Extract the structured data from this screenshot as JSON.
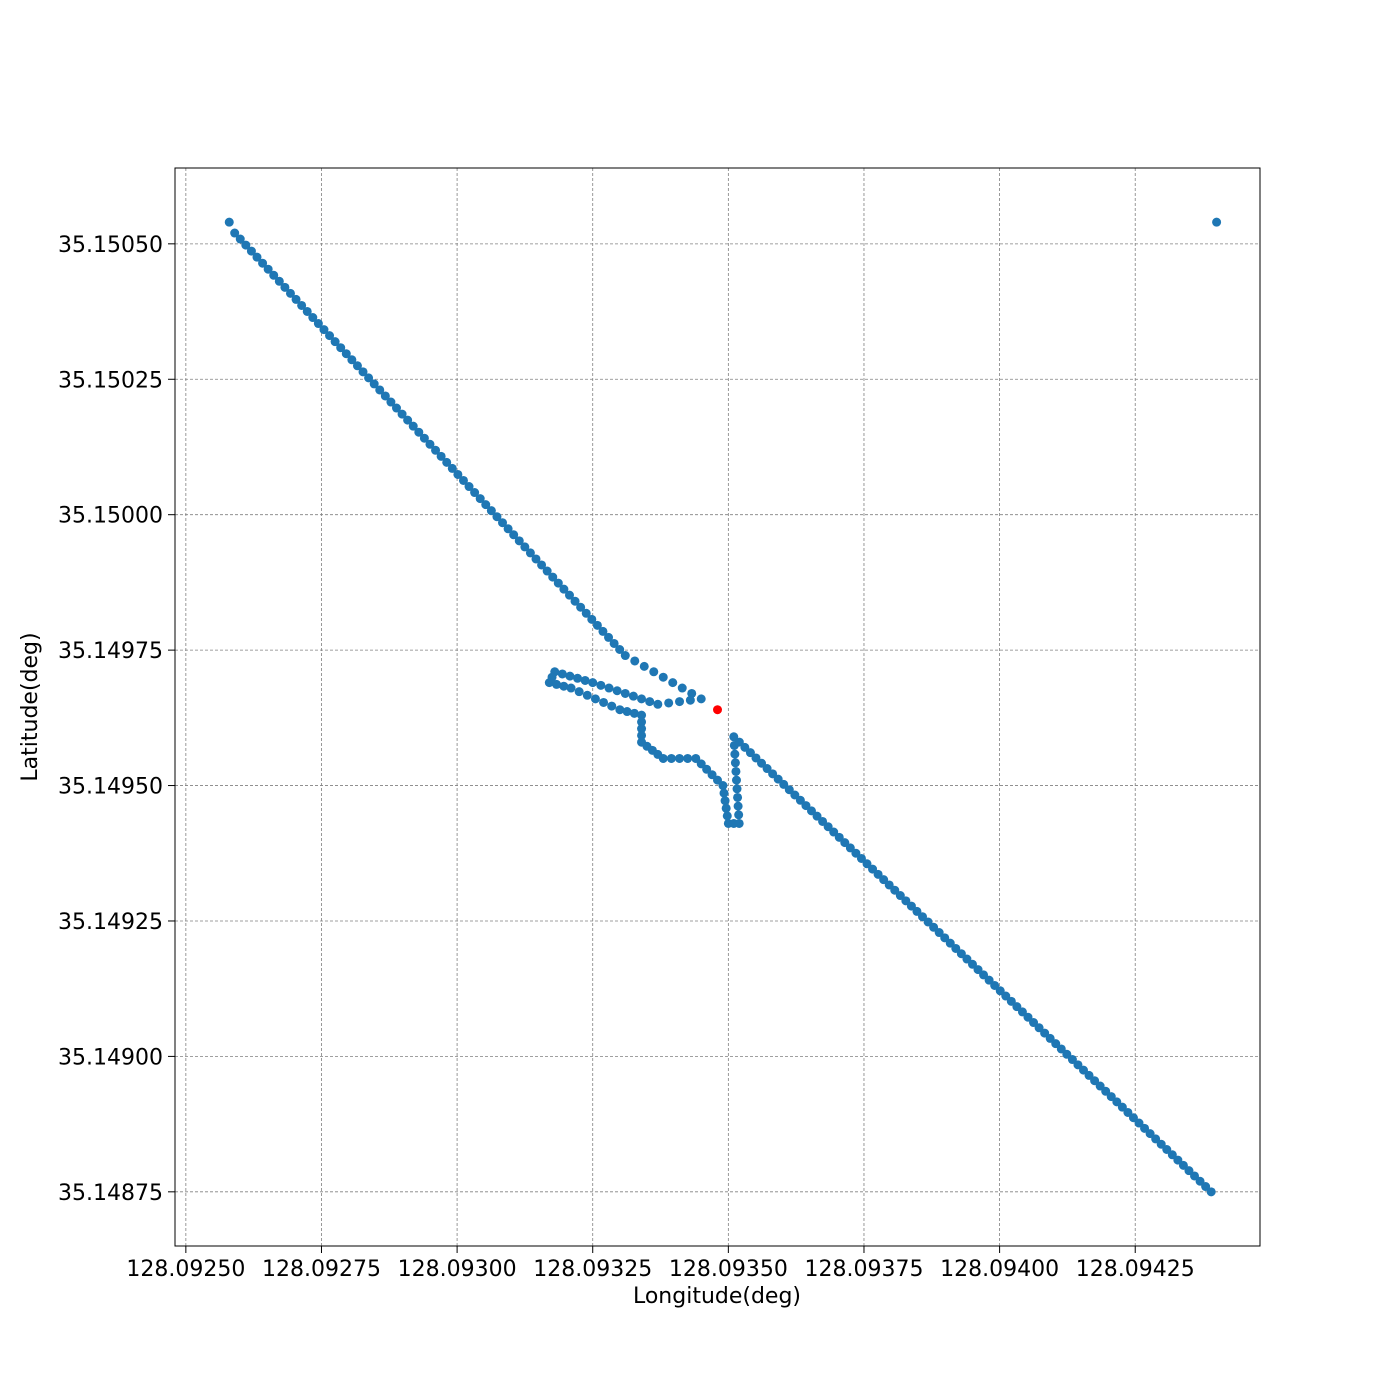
{
  "chart_data": {
    "type": "scatter",
    "title": "",
    "xlabel": "Longitude(deg)",
    "ylabel": "Latitude(deg)",
    "xlim": [
      128.09248,
      128.09448
    ],
    "ylim": [
      35.14865,
      35.15064
    ],
    "grid": true,
    "x_ticks": [
      "128.09250",
      "128.09275",
      "128.09300",
      "128.09325",
      "128.09350",
      "128.09375",
      "128.09400",
      "128.09425"
    ],
    "y_ticks": [
      "35.14875",
      "35.14900",
      "35.14925",
      "35.14950",
      "35.14975",
      "35.15000",
      "35.15025",
      "35.15050"
    ],
    "series": [
      {
        "color": "#1f77b4",
        "segments": [
          {
            "from": [
              128.09259,
              35.15052
            ],
            "to": [
              128.09331,
              35.14974
            ],
            "n": 70
          },
          {
            "from": [
              128.09331,
              35.14974
            ],
            "to": [
              128.09345,
              35.14966
            ],
            "n": 8
          },
          {
            "from": [
              128.09345,
              35.14966
            ],
            "to": [
              128.09337,
              35.14965
            ],
            "n": 4
          },
          {
            "from": [
              128.09337,
              35.14965
            ],
            "to": [
              128.09325,
              35.14969
            ],
            "n": 8
          },
          {
            "from": [
              128.09325,
              35.14969
            ],
            "to": [
              128.09318,
              35.14971
            ],
            "n": 5
          },
          {
            "from": [
              128.09318,
              35.14971
            ],
            "to": [
              128.09317,
              35.14969
            ],
            "n": 2
          },
          {
            "from": [
              128.09317,
              35.14969
            ],
            "to": [
              128.09321,
              35.14968
            ],
            "n": 3
          },
          {
            "from": [
              128.09321,
              35.14968
            ],
            "to": [
              128.0933,
              35.14964
            ],
            "n": 6
          },
          {
            "from": [
              128.0933,
              35.14964
            ],
            "to": [
              128.09334,
              35.14963
            ],
            "n": 3
          },
          {
            "from": [
              128.09334,
              35.14963
            ],
            "to": [
              128.09334,
              35.14958
            ],
            "n": 4
          },
          {
            "from": [
              128.09334,
              35.14958
            ],
            "to": [
              128.09338,
              35.14955
            ],
            "n": 4
          },
          {
            "from": [
              128.09338,
              35.14955
            ],
            "to": [
              128.09344,
              35.14955
            ],
            "n": 4
          },
          {
            "from": [
              128.09344,
              35.14955
            ],
            "to": [
              128.09349,
              35.1495
            ],
            "n": 5
          },
          {
            "from": [
              128.09349,
              35.1495
            ],
            "to": [
              128.0935,
              35.14943
            ],
            "n": 5
          },
          {
            "from": [
              128.0935,
              35.14943
            ],
            "to": [
              128.09352,
              35.14943
            ],
            "n": 2
          },
          {
            "from": [
              128.09352,
              35.14943
            ],
            "to": [
              128.09351,
              35.14959
            ],
            "n": 10
          },
          {
            "from": [
              128.09351,
              35.14959
            ],
            "to": [
              128.09439,
              35.14875
            ],
            "n": 86
          }
        ]
      },
      {
        "color": "#1f77b4",
        "points": [
          [
            128.09258,
            35.15054
          ],
          [
            128.0944,
            35.15054
          ]
        ]
      },
      {
        "color": "#ff0000",
        "points": [
          [
            128.09348,
            35.14964
          ]
        ]
      }
    ]
  }
}
